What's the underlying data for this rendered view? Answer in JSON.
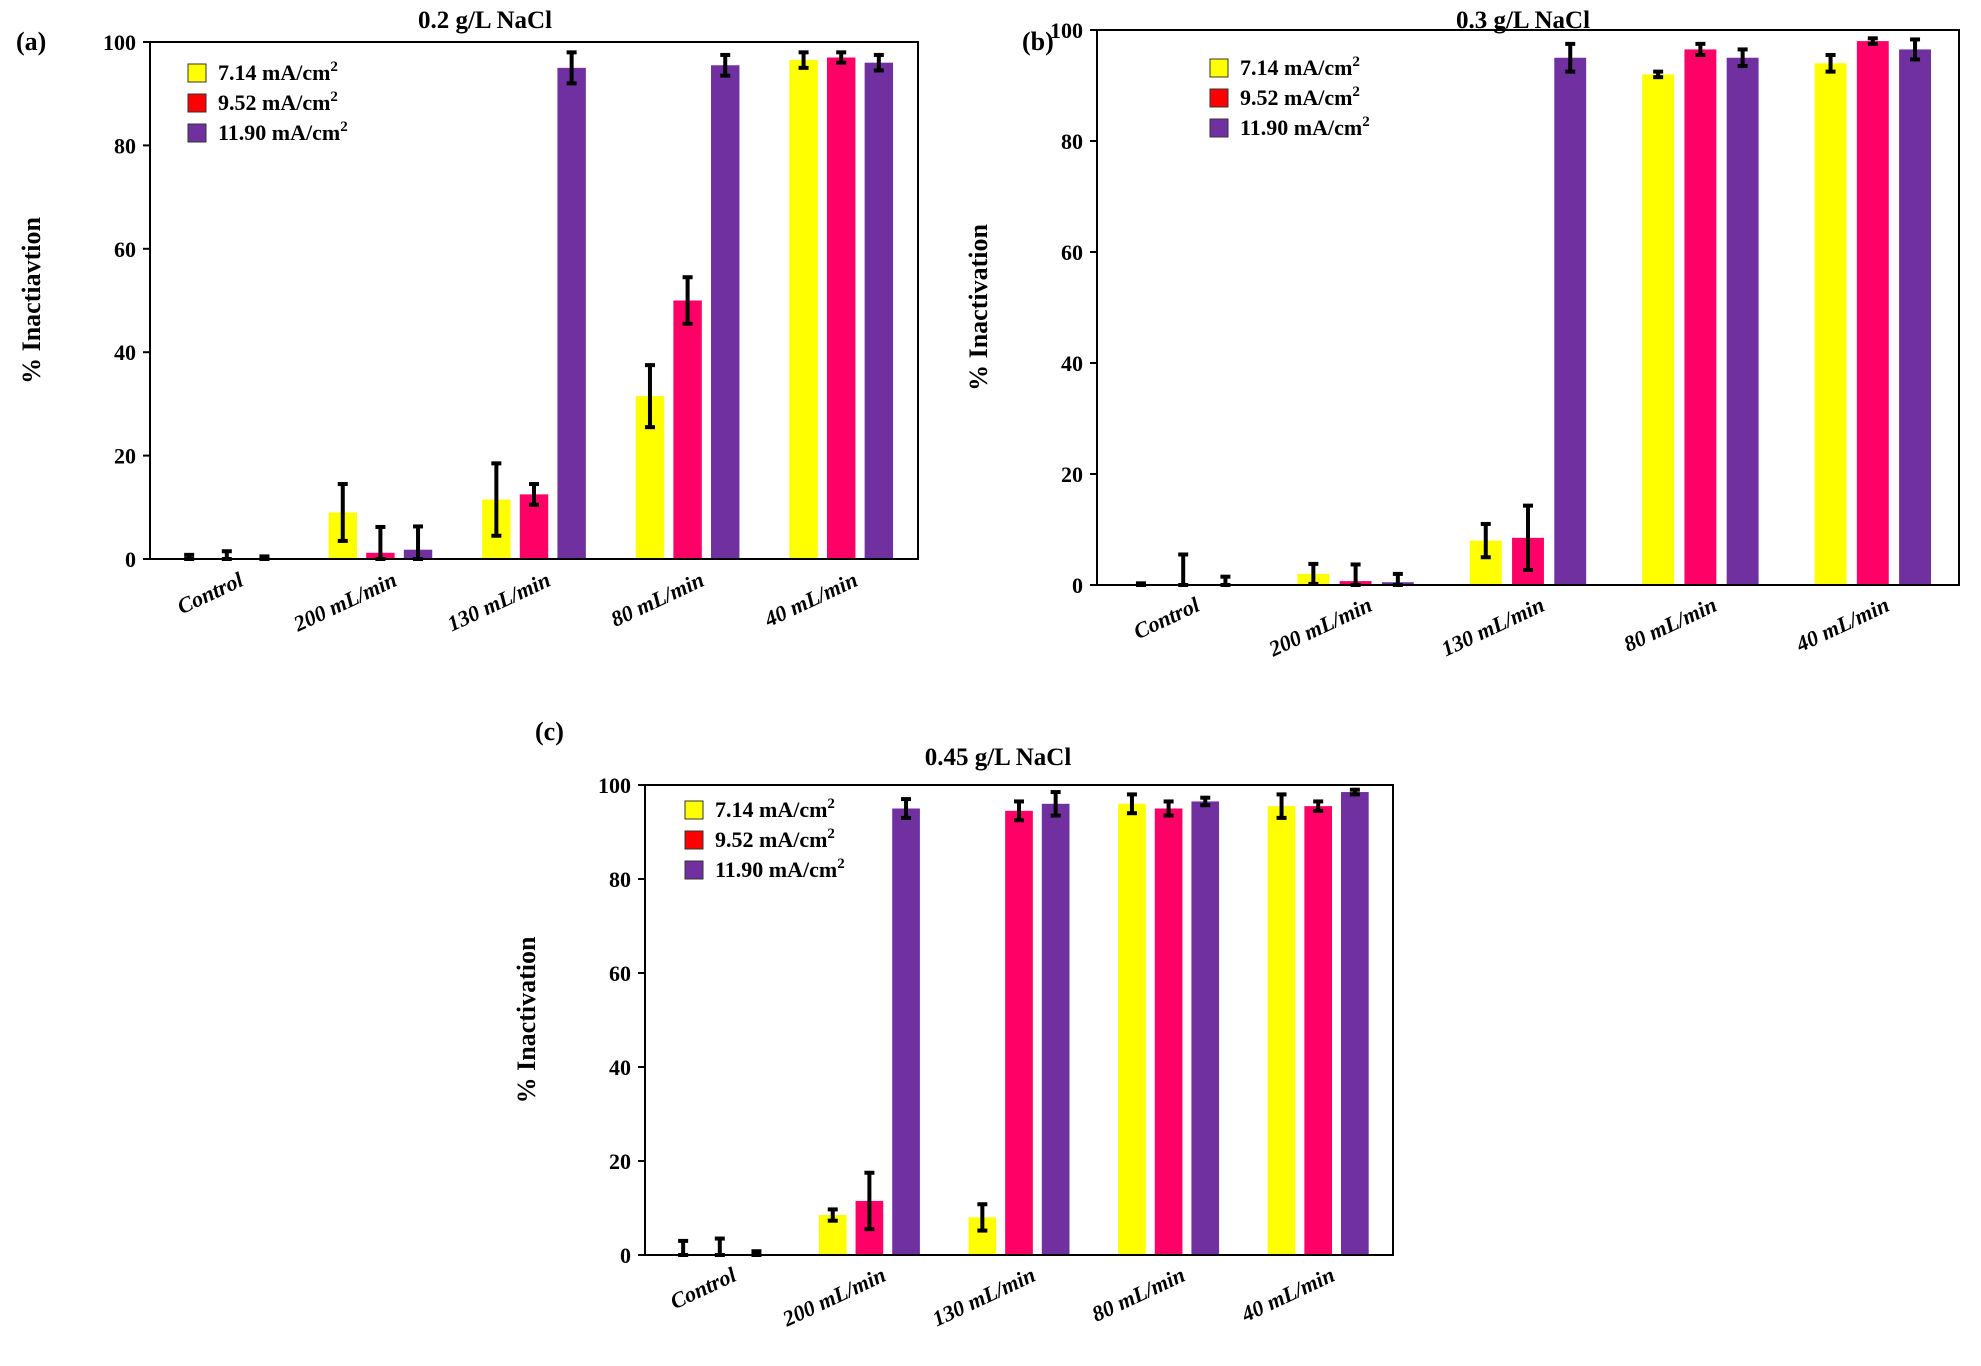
{
  "colors": {
    "series": [
      "#ffff00",
      "#ff0066",
      "#7030a0"
    ],
    "legend_swatch": [
      "#ffff00",
      "#ff0000",
      "#7030a0"
    ],
    "error_bar": "#000000",
    "axis": "#000000"
  },
  "chart_data": [
    {
      "type": "bar",
      "panel_label": "(a)",
      "title": "0.2 g/L NaCl",
      "ylabel": "% Inactiavtion",
      "xlabel": "",
      "ylim": [
        0,
        100
      ],
      "yticks": [
        0,
        20,
        40,
        60,
        80,
        100
      ],
      "legend_position": "top-left",
      "categories": [
        "Control",
        "200 mL/min",
        "130 mL/min",
        "80 mL/min",
        "40 mL/min"
      ],
      "series": [
        {
          "name": "7.14 mA/cm",
          "unit_superscript": "2",
          "values": [
            0,
            9,
            11.5,
            31.5,
            96.5
          ],
          "errors": [
            0.8,
            5.5,
            7,
            6,
            1.5
          ]
        },
        {
          "name": "9.52 mA/cm",
          "unit_superscript": "2",
          "values": [
            0,
            1.2,
            12.5,
            50,
            97
          ],
          "errors": [
            1.5,
            5,
            2,
            4.5,
            1
          ]
        },
        {
          "name": "11.90 mA/cm",
          "unit_superscript": "2",
          "values": [
            0,
            1.8,
            95,
            95.5,
            96
          ],
          "errors": [
            0.5,
            4.5,
            3,
            2,
            1.5
          ]
        }
      ]
    },
    {
      "type": "bar",
      "panel_label": "(b)",
      "title": "0.3 g/L NaCl",
      "ylabel": "% Inactivation",
      "xlabel": "",
      "ylim": [
        0,
        100
      ],
      "yticks": [
        0,
        20,
        40,
        60,
        80,
        100
      ],
      "legend_position": "top-left",
      "categories": [
        "Control",
        "200 mL/min",
        "130 mL/min",
        "80 mL/min",
        "40 mL/min"
      ],
      "series": [
        {
          "name": "7.14 mA/cm",
          "unit_superscript": "2",
          "values": [
            0,
            2,
            8,
            92,
            94
          ],
          "errors": [
            0.3,
            1.8,
            3,
            0.5,
            1.5
          ]
        },
        {
          "name": "9.52 mA/cm",
          "unit_superscript": "2",
          "values": [
            0,
            0.7,
            8.5,
            96.5,
            98
          ],
          "errors": [
            5.5,
            3,
            5.8,
            1,
            0.5
          ]
        },
        {
          "name": "11.90 mA/cm",
          "unit_superscript": "2",
          "values": [
            0,
            0.5,
            95,
            95,
            96.5
          ],
          "errors": [
            1.5,
            1.5,
            2.5,
            1.5,
            1.8
          ]
        }
      ]
    },
    {
      "type": "bar",
      "panel_label": "(c)",
      "title": "0.45 g/L NaCl",
      "ylabel": "% Inactivation",
      "xlabel": "",
      "ylim": [
        0,
        100
      ],
      "yticks": [
        0,
        20,
        40,
        60,
        80,
        100
      ],
      "legend_position": "top-left",
      "categories": [
        "Control",
        "200 mL/min",
        "130 mL/min",
        "80 mL/min",
        "40 mL/min"
      ],
      "series": [
        {
          "name": "7.14 mA/cm",
          "unit_superscript": "2",
          "values": [
            0,
            8.5,
            8,
            96,
            95.5
          ],
          "errors": [
            3,
            1.2,
            2.8,
            2,
            2.5
          ]
        },
        {
          "name": "9.52 mA/cm",
          "unit_superscript": "2",
          "values": [
            0,
            11.5,
            94.5,
            95,
            95.5
          ],
          "errors": [
            3.5,
            6,
            2,
            1.5,
            1
          ]
        },
        {
          "name": "11.90 mA/cm",
          "unit_superscript": "2",
          "values": [
            0,
            95,
            96,
            96.5,
            98.5
          ],
          "errors": [
            0.8,
            2,
            2.5,
            0.8,
            0.5
          ]
        }
      ]
    }
  ]
}
